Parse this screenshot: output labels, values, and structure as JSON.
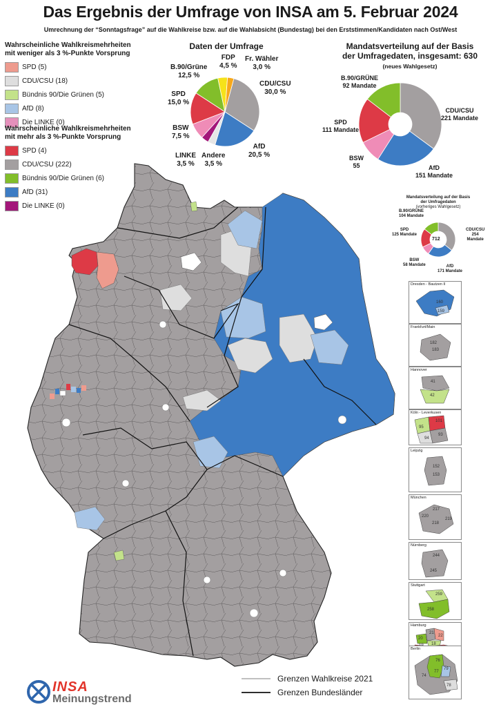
{
  "header": {
    "title": "Das Ergebnis der Umfrage von INSA am 5. Februar 2024",
    "subtitle": "Umrechnung der “Sonntagsfrage” auf die Wahlkreise bzw. auf die Wahlabsicht (Bundestag) bei den Erststimmen/Kandidaten nach Ost/West"
  },
  "legend_low": {
    "title_line1": "Wahrscheinliche Wahlkreismehrheiten",
    "title_line2": "mit weniger als 3 %-Punkte Vorsprung",
    "items": [
      {
        "label": "SPD (5)",
        "color": "#ee9b8e"
      },
      {
        "label": "CDU/CSU (18)",
        "color": "#dedede"
      },
      {
        "label": "Bündnis 90/Die Grünen (5)",
        "color": "#c3e28a"
      },
      {
        "label": "AfD (8)",
        "color": "#a8c5e6"
      },
      {
        "label": "Die LINKE (0)",
        "color": "#e590bb"
      }
    ]
  },
  "legend_high": {
    "title_line1": "Wahrscheinliche Wahlkreismehrheiten",
    "title_line2": "mit mehr als 3 %-Punkte Vorsprung",
    "items": [
      {
        "label": "SPD (4)",
        "color": "#dd3a46"
      },
      {
        "label": "CDU/CSU (222)",
        "color": "#a39fa0"
      },
      {
        "label": "Bündnis 90/Die Grünen (6)",
        "color": "#82be2a"
      },
      {
        "label": "AfD (31)",
        "color": "#3d7cc4"
      },
      {
        "label": "Die LINKE (0)",
        "color": "#a3177a"
      }
    ]
  },
  "poll": {
    "title": "Daten der Umfrage",
    "labels": {
      "fdp": [
        "FDP",
        "4,5 %"
      ],
      "fw": [
        "Fr. Wähler",
        "3,0 %"
      ],
      "cdu": [
        "CDU/CSU",
        "30,0 %"
      ],
      "afd": [
        "AfD",
        "20,5 %"
      ],
      "andere": [
        "Andere",
        "3,5 %"
      ],
      "linke": [
        "LINKE",
        "3,5 %"
      ],
      "bsw": [
        "BSW",
        "7,5 %"
      ],
      "spd": [
        "SPD",
        "15,0 %"
      ],
      "gruene": [
        "B.90/Grüne",
        "12,5 %"
      ]
    }
  },
  "seats_new": {
    "title_line1": "Mandatsverteilung auf der Basis",
    "title_line2": "der Umfragedaten, insgesamt: 630",
    "note": "(neues Wahlgesetz)",
    "labels": {
      "gruene": [
        "B.90/GRÜNE",
        "92 Mandate"
      ],
      "cdu": [
        "CDU/CSU",
        "221 Mandate"
      ],
      "spd": [
        "SPD",
        "111 Mandate"
      ],
      "bsw": [
        "BSW",
        "55"
      ],
      "afd": [
        "AfD",
        "151 Mandate"
      ]
    }
  },
  "seats_old": {
    "title_line1": "Mandatsverteilung auf der Basis",
    "title_line2": "der Umfragedaten",
    "note": "(vorheriges Wahlgesetz)",
    "total": "712",
    "labels": {
      "gruene": [
        "B.90/GRÜNE",
        "104 Mandate"
      ],
      "cdu": [
        "CDU/CSU",
        "254",
        "Mandate"
      ],
      "spd": [
        "SPD",
        "125 Mandate"
      ],
      "bsw": [
        "BSW",
        "58 Mandate"
      ],
      "afd": [
        "AfD",
        "171 Mandate"
      ]
    }
  },
  "chart_data": [
    {
      "type": "pie",
      "title": "Daten der Umfrage",
      "categories": [
        "CDU/CSU",
        "AfD",
        "Andere",
        "LINKE",
        "BSW",
        "SPD",
        "B.90/Grüne",
        "FDP",
        "Fr. Wähler"
      ],
      "values": [
        30.0,
        20.5,
        3.5,
        3.5,
        7.5,
        15.0,
        12.5,
        4.5,
        3.0
      ],
      "colors": [
        "#a39fa0",
        "#3d7cc4",
        "#e6e6e6",
        "#a3177a",
        "#ef8cb7",
        "#dd3a46",
        "#82be2a",
        "#f6e21a",
        "#f7a81b"
      ]
    },
    {
      "type": "pie",
      "title": "Mandatsverteilung auf der Basis der Umfragedaten, insgesamt: 630",
      "categories": [
        "CDU/CSU",
        "AfD",
        "BSW",
        "SPD",
        "B.90/GRÜNE"
      ],
      "values": [
        221,
        151,
        55,
        111,
        92
      ],
      "colors": [
        "#a39fa0",
        "#3d7cc4",
        "#ef8cb7",
        "#dd3a46",
        "#82be2a"
      ]
    },
    {
      "type": "pie",
      "title": "Mandatsverteilung auf der Basis der Umfragedaten (vorheriges Wahlgesetz)",
      "categories": [
        "CDU/CSU",
        "AfD",
        "BSW",
        "SPD",
        "B.90/GRÜNE"
      ],
      "values": [
        254,
        171,
        58,
        125,
        104
      ],
      "colors": [
        "#a39fa0",
        "#3d7cc4",
        "#ef8cb7",
        "#dd3a46",
        "#82be2a"
      ]
    }
  ],
  "map": {
    "colors": {
      "gray": "#a39fa0",
      "blue": "#3d7cc4",
      "lightblue": "#a8c5e6",
      "lightgray": "#dedede",
      "red": "#dd3a46",
      "salmon": "#ee9b8e",
      "green": "#82be2a",
      "lightgreen": "#c3e28a",
      "white": "#ffffff"
    }
  },
  "insets": [
    {
      "caption": "Dresden - Bautzen II",
      "numbers": [
        "160",
        "159"
      ]
    },
    {
      "caption": "Frankfurt/Main",
      "numbers": [
        "182",
        "183"
      ]
    },
    {
      "caption": "Hannover",
      "numbers": [
        "41",
        "42"
      ]
    },
    {
      "caption": "Köln - Leverkusen",
      "numbers": [
        "101",
        "95",
        "93",
        "94"
      ]
    },
    {
      "caption": "Leipzig",
      "numbers": [
        "152",
        "153"
      ]
    },
    {
      "caption": "München",
      "numbers": [
        "217",
        "220",
        "218",
        "219"
      ]
    },
    {
      "caption": "Nürnberg",
      "numbers": [
        "244",
        "245"
      ]
    },
    {
      "caption": "Stuttgart",
      "numbers": [
        "259",
        "258"
      ]
    },
    {
      "caption": "Hamburg",
      "numbers": [
        "21",
        "20",
        "22",
        "19",
        "18",
        "23"
      ]
    },
    {
      "caption": "Berlin",
      "numbers": [
        "76",
        "79",
        "77",
        "74",
        "78"
      ]
    }
  ],
  "boundary_legend": {
    "wahlkreise": "Grenzen Wahlkreise 2021",
    "bundeslaender": "Grenzen Bundesländer"
  },
  "logo": {
    "line1": "INSA",
    "line2": "Meinungstrend"
  }
}
